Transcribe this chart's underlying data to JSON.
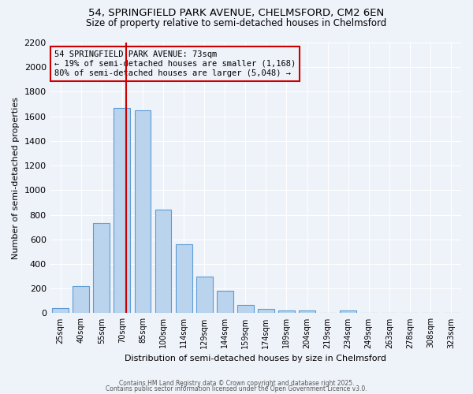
{
  "title_line1": "54, SPRINGFIELD PARK AVENUE, CHELMSFORD, CM2 6EN",
  "title_line2": "Size of property relative to semi-detached houses in Chelmsford",
  "xlabel": "Distribution of semi-detached houses by size in Chelmsford",
  "ylabel": "Number of semi-detached properties",
  "bin_labels": [
    "25sqm",
    "40sqm",
    "55sqm",
    "70sqm",
    "85sqm",
    "100sqm",
    "114sqm",
    "129sqm",
    "144sqm",
    "159sqm",
    "174sqm",
    "189sqm",
    "204sqm",
    "219sqm",
    "234sqm",
    "249sqm",
    "263sqm",
    "278sqm",
    "308sqm",
    "323sqm"
  ],
  "bar_values": [
    40,
    220,
    730,
    1670,
    1650,
    840,
    560,
    300,
    180,
    70,
    35,
    25,
    20,
    0,
    20,
    0,
    0,
    0,
    0,
    0
  ],
  "bar_color": "#bad4ed",
  "bar_edge_color": "#5b9bd5",
  "property_size_bin": 3,
  "vline_color": "#cc0000",
  "annotation_text": "54 SPRINGFIELD PARK AVENUE: 73sqm\n← 19% of semi-detached houses are smaller (1,168)\n80% of semi-detached houses are larger (5,048) →",
  "annotation_box_color": "#cc0000",
  "ylim_max": 2200,
  "yticks": [
    0,
    200,
    400,
    600,
    800,
    1000,
    1200,
    1400,
    1600,
    1800,
    2000,
    2200
  ],
  "background_color": "#eef2f9",
  "grid_color": "#ffffff",
  "footer_line1": "Contains HM Land Registry data © Crown copyright and database right 2025.",
  "footer_line2": "Contains public sector information licensed under the Open Government Licence v3.0."
}
